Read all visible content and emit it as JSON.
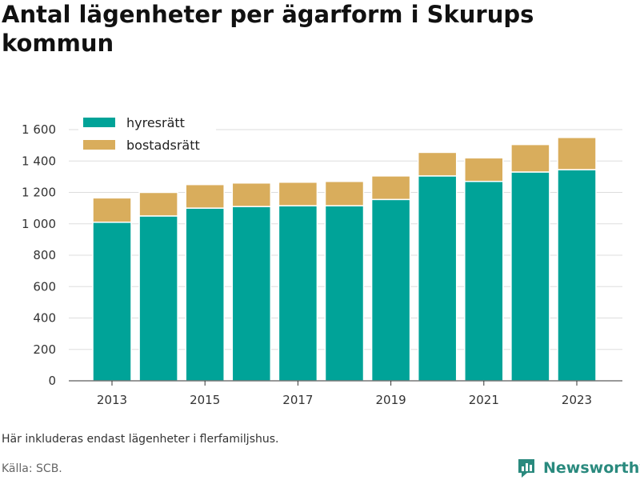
{
  "title": "Antal lägenheter per ägarform i Skurups kommun",
  "note": "Här inkluderas endast lägenheter i flerfamiljshus.",
  "source": "Källa: SCB.",
  "brand": {
    "name": "Newsworthy",
    "icon": "newsworthy-logo-icon",
    "color": "#2a8a7e"
  },
  "chart_data": {
    "type": "bar",
    "stacked": true,
    "categories": [
      "2013",
      "2014",
      "2015",
      "2016",
      "2017",
      "2018",
      "2019",
      "2020",
      "2021",
      "2022",
      "2023"
    ],
    "x_tick_labels": [
      "2013",
      "2015",
      "2017",
      "2019",
      "2021",
      "2023"
    ],
    "series": [
      {
        "name": "hyresrätt",
        "color": "#00a398",
        "values": [
          1010,
          1050,
          1100,
          1110,
          1115,
          1115,
          1155,
          1305,
          1270,
          1330,
          1345
        ]
      },
      {
        "name": "bostadsrätt",
        "color": "#d9ad5c",
        "values": [
          155,
          150,
          150,
          150,
          150,
          155,
          150,
          150,
          150,
          175,
          205
        ]
      }
    ],
    "ylim": [
      0,
      1600
    ],
    "y_ticks": [
      0,
      200,
      400,
      600,
      800,
      1000,
      1200,
      1400,
      1600
    ],
    "y_tick_labels": [
      "0",
      "200",
      "400",
      "600",
      "800",
      "1 000",
      "1 200",
      "1 400",
      "1 600"
    ],
    "grid": true,
    "legend_position": "top-left"
  }
}
